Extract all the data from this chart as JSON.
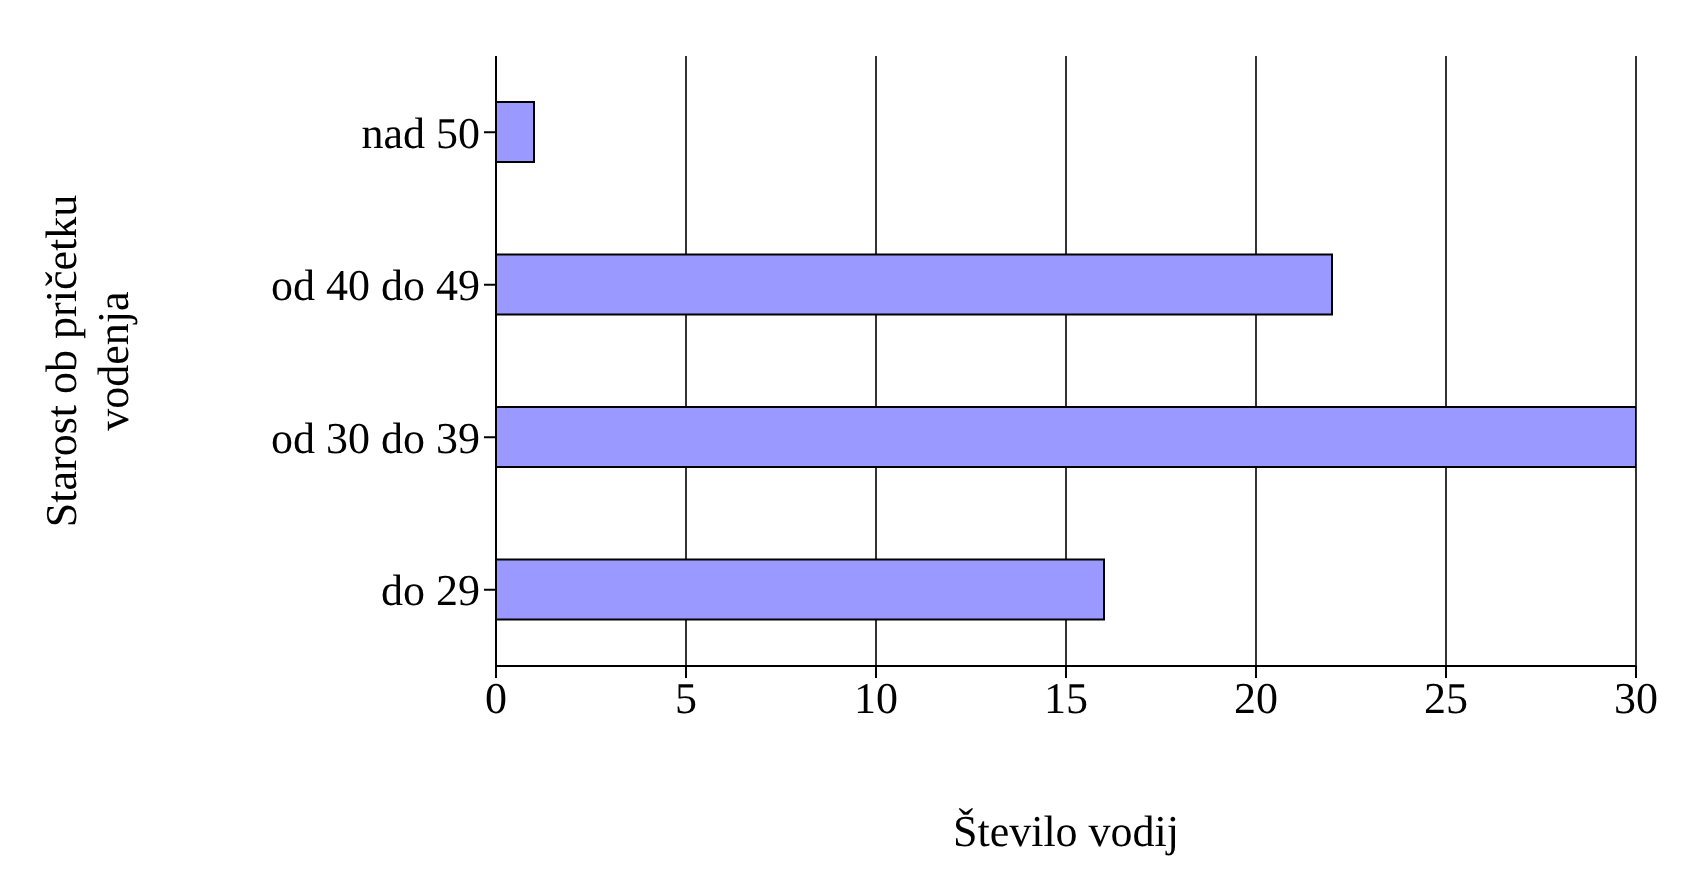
{
  "chart_data": {
    "type": "bar",
    "orientation": "horizontal",
    "xlabel": "Število vodij",
    "ylabel": "Starost ob pričetku vodenja",
    "categories": [
      "nad 50",
      "od 40 do 49",
      "od 30 do 39",
      "do 29"
    ],
    "values": [
      1,
      22,
      30,
      16
    ],
    "color": "#9999ff",
    "xlim": [
      0,
      30
    ],
    "xticks": [
      0,
      5,
      10,
      15,
      20,
      25,
      30
    ],
    "grid": "x"
  }
}
